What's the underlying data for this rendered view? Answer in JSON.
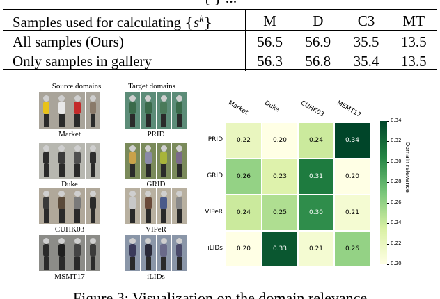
{
  "table": {
    "caption_fragment": "{ } ... ",
    "header": {
      "label_prefix": "Samples used for calculating ",
      "label_math_open": "{",
      "label_math_var": "s",
      "label_math_sup": "k",
      "label_math_close": "}",
      "cols": [
        "M",
        "D",
        "C3",
        "MT"
      ]
    },
    "rows": [
      {
        "label": "All samples (Ours)",
        "values": [
          "56.5",
          "56.9",
          "35.5",
          "13.5"
        ]
      },
      {
        "label": "Only samples in gallery",
        "values": [
          "56.3",
          "56.8",
          "35.4",
          "13.5"
        ]
      }
    ]
  },
  "image_grid": {
    "source_title": "Source domains",
    "target_title": "Target domains",
    "source": [
      "Market",
      "Duke",
      "CUHK03",
      "MSMT17"
    ],
    "target": [
      "PRID",
      "GRID",
      "VIPeR",
      "iLIDs"
    ]
  },
  "chart_data": {
    "type": "heatmap",
    "title": "",
    "columns": [
      "Market",
      "Duke",
      "CUHK03",
      "MSMT17"
    ],
    "rows": [
      "PRID",
      "GRID",
      "VIPeR",
      "iLIDs"
    ],
    "values": [
      [
        0.22,
        0.2,
        0.24,
        0.34
      ],
      [
        0.26,
        0.23,
        0.31,
        0.2
      ],
      [
        0.24,
        0.25,
        0.3,
        0.21
      ],
      [
        0.2,
        0.33,
        0.21,
        0.26
      ]
    ],
    "colorbar": {
      "label": "Domain relevance",
      "range": [
        0.2,
        0.34
      ],
      "ticks": [
        "0.20",
        "0.22",
        "0.24",
        "0.26",
        "0.28",
        "0.30",
        "0.32",
        "0.34"
      ],
      "colormap": "Greens"
    }
  },
  "figure_caption": "Figure 3: Visualization on the domain relevance"
}
